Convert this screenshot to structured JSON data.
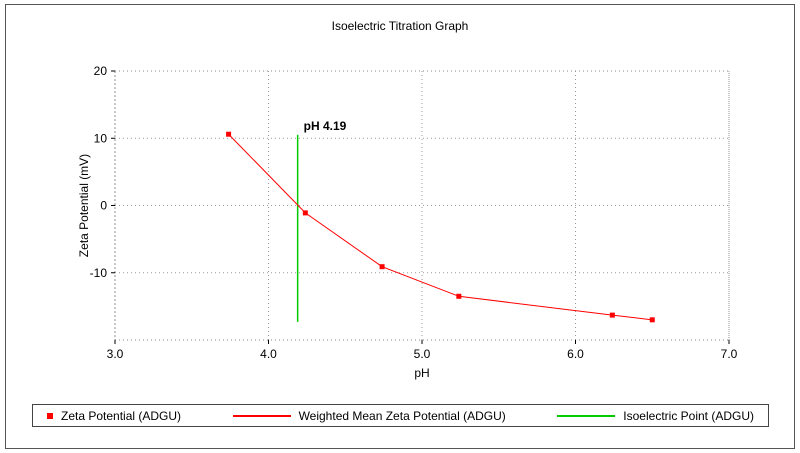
{
  "chart_data": {
    "type": "line",
    "title": "Isoelectric Titration Graph",
    "xlabel": "pH",
    "ylabel": "Zeta Potential (mV)",
    "xlim": [
      3.0,
      7.0
    ],
    "ylim": [
      -20,
      20
    ],
    "x_ticks": [
      3.0,
      4.0,
      5.0,
      6.0,
      7.0
    ],
    "x_tick_labels": [
      "3.0",
      "4.0",
      "5.0",
      "6.0",
      "7.0"
    ],
    "y_ticks": [
      20,
      10,
      0,
      -10
    ],
    "y_tick_labels": [
      "20",
      "10",
      "0",
      "-10"
    ],
    "grid": true,
    "legend_position": "bottom",
    "series": [
      {
        "name": "Weighted Mean Zeta Potential (ADGU)",
        "color": "#ff0000",
        "marker": "square",
        "points": [
          [
            3.74,
            10.6
          ],
          [
            4.24,
            -1.1
          ],
          [
            4.74,
            -9.1
          ],
          [
            5.24,
            -13.5
          ],
          [
            6.24,
            -16.3
          ],
          [
            6.5,
            -17.0
          ]
        ]
      }
    ],
    "isoelectric_point": {
      "x": 4.19,
      "label": "pH 4.19",
      "color": "#00cc00",
      "y_top": 10.5,
      "y_bottom": -17.3
    }
  },
  "legend": {
    "items": [
      {
        "label": "Zeta Potential (ADGU)",
        "swatch": "square",
        "color": "#ff0000"
      },
      {
        "label": "Weighted Mean Zeta Potential (ADGU)",
        "swatch": "line",
        "color": "#ff0000"
      },
      {
        "label": "Isoelectric Point (ADGU)",
        "swatch": "line",
        "color": "#00cc00"
      }
    ]
  }
}
